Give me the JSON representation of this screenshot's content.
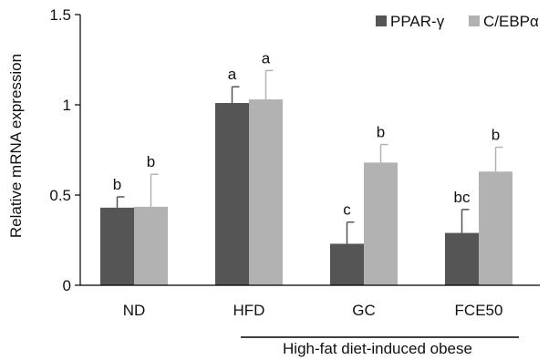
{
  "chart_data": {
    "type": "bar",
    "ylabel": "Relative mRNA expression",
    "ylim": [
      0,
      1.5
    ],
    "yticks": [
      "0",
      "0.5",
      "1",
      "1.5"
    ],
    "ytick_values": [
      0,
      0.5,
      1,
      1.5
    ],
    "categories": [
      "ND",
      "HFD",
      "GC",
      "FCE50"
    ],
    "group_label": "High-fat diet-induced obese",
    "group_categories": [
      "HFD",
      "GC",
      "FCE50"
    ],
    "legend_position": "top-right",
    "grid": false,
    "series": [
      {
        "name": "PPAR-γ",
        "color": "#555555",
        "values": [
          0.43,
          1.01,
          0.23,
          0.29
        ],
        "errors": [
          0.06,
          0.09,
          0.12,
          0.13
        ],
        "letters": [
          "b",
          "a",
          "c",
          "bc"
        ]
      },
      {
        "name": "C/EBPα",
        "color": "#b2b2b2",
        "values": [
          0.435,
          1.03,
          0.68,
          0.63
        ],
        "errors": [
          0.18,
          0.16,
          0.1,
          0.135
        ],
        "letters": [
          "b",
          "a",
          "b",
          "b"
        ]
      }
    ]
  }
}
